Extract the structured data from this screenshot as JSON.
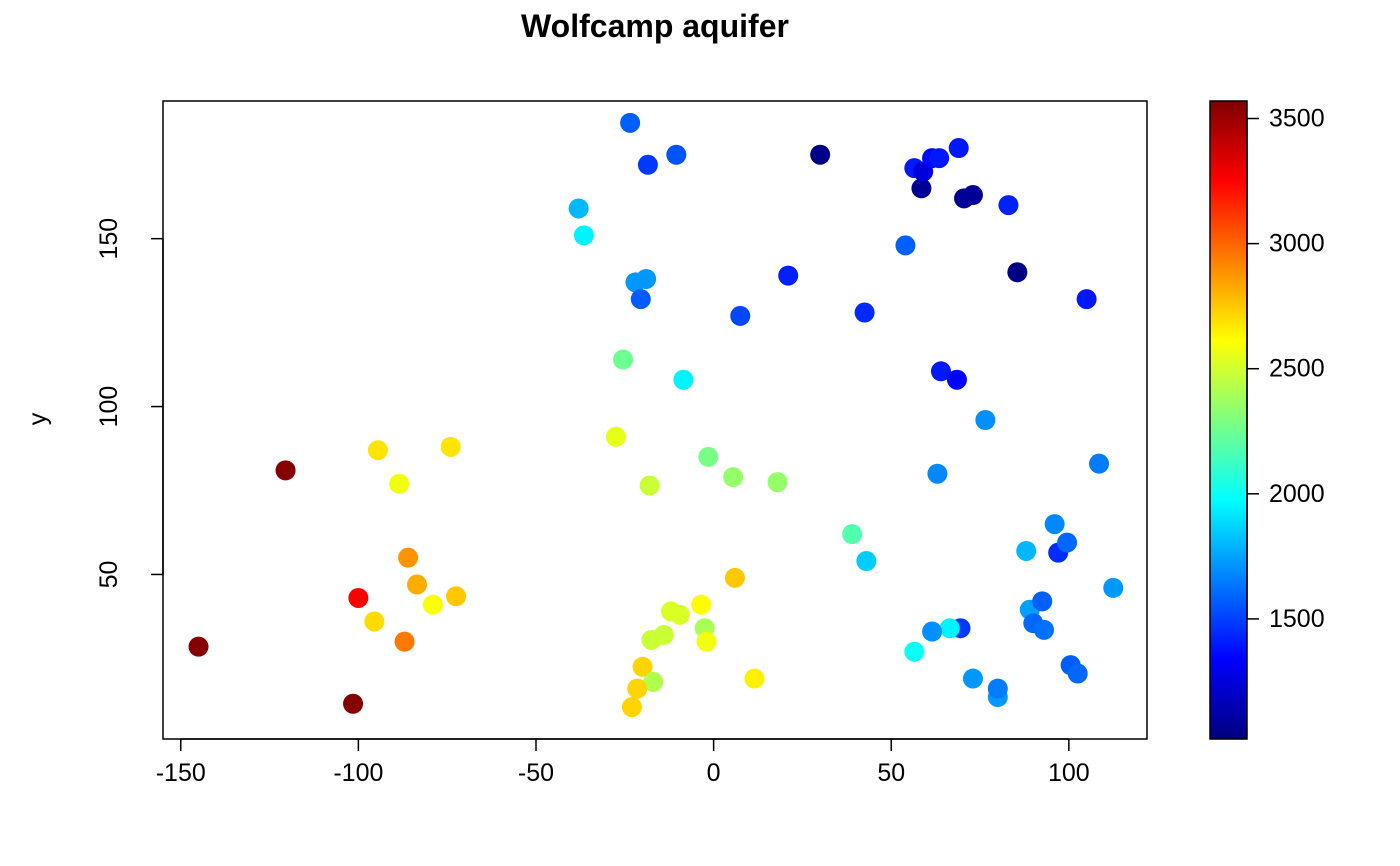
{
  "chart_data": {
    "type": "scatter",
    "title": "Wolfcamp aquifer",
    "xlabel": "",
    "ylabel": "y",
    "xlim": [
      -155,
      122
    ],
    "ylim": [
      1,
      191
    ],
    "xticks": [
      -150,
      -100,
      -50,
      0,
      50,
      100
    ],
    "xtick_labels": [
      "-150",
      "-100",
      "-50",
      "0",
      "50",
      "100"
    ],
    "yticks": [
      50,
      100,
      150
    ],
    "ytick_labels": [
      "50",
      "100",
      "150"
    ],
    "grid": false,
    "legend": "right",
    "colorbar": {
      "min": 1020,
      "max": 3570,
      "ticks": [
        1500,
        2000,
        2500,
        3000,
        3500
      ],
      "tick_labels": [
        "1500",
        "2000",
        "2500",
        "3000",
        "3500"
      ],
      "colormap": [
        "#00007F",
        "#0000FF",
        "#007FFF",
        "#00FFFF",
        "#7FFF7F",
        "#FFFF00",
        "#FF7F00",
        "#FF0000",
        "#7F0000"
      ]
    },
    "points": [
      {
        "x": -23.5,
        "y": 184.5,
        "value": 1580
      },
      {
        "x": -10.5,
        "y": 175,
        "value": 1550
      },
      {
        "x": -18.5,
        "y": 172,
        "value": 1480
      },
      {
        "x": -38,
        "y": 159,
        "value": 1800
      },
      {
        "x": -36.5,
        "y": 151,
        "value": 1950
      },
      {
        "x": -22,
        "y": 137,
        "value": 1720
      },
      {
        "x": -19,
        "y": 138,
        "value": 1720
      },
      {
        "x": -20.5,
        "y": 132,
        "value": 1570
      },
      {
        "x": 7.5,
        "y": 127,
        "value": 1520
      },
      {
        "x": 21,
        "y": 139,
        "value": 1420
      },
      {
        "x": 30,
        "y": 175,
        "value": 1040
      },
      {
        "x": 42.5,
        "y": 128,
        "value": 1440
      },
      {
        "x": 54,
        "y": 148,
        "value": 1580
      },
      {
        "x": 56.5,
        "y": 171,
        "value": 1400
      },
      {
        "x": 58.5,
        "y": 165,
        "value": 1080
      },
      {
        "x": 59,
        "y": 170,
        "value": 1250
      },
      {
        "x": 61.5,
        "y": 174,
        "value": 1360
      },
      {
        "x": 63.5,
        "y": 174,
        "value": 1400
      },
      {
        "x": 69,
        "y": 177,
        "value": 1400
      },
      {
        "x": 70.5,
        "y": 162,
        "value": 1080
      },
      {
        "x": 73,
        "y": 163,
        "value": 1080
      },
      {
        "x": 83,
        "y": 160,
        "value": 1420
      },
      {
        "x": 85.5,
        "y": 140,
        "value": 1040
      },
      {
        "x": 105,
        "y": 132,
        "value": 1400
      },
      {
        "x": -25.5,
        "y": 114,
        "value": 2250
      },
      {
        "x": -8.5,
        "y": 108,
        "value": 1950
      },
      {
        "x": 64,
        "y": 110.5,
        "value": 1400
      },
      {
        "x": 68.5,
        "y": 108,
        "value": 1350
      },
      {
        "x": 76.5,
        "y": 96,
        "value": 1700
      },
      {
        "x": 108.5,
        "y": 83,
        "value": 1650
      },
      {
        "x": -27.5,
        "y": 91,
        "value": 2550
      },
      {
        "x": -1.5,
        "y": 85,
        "value": 2280
      },
      {
        "x": 5.5,
        "y": 79,
        "value": 2350
      },
      {
        "x": 18,
        "y": 77.5,
        "value": 2350
      },
      {
        "x": -18,
        "y": 76.5,
        "value": 2480
      },
      {
        "x": 63,
        "y": 80,
        "value": 1680
      },
      {
        "x": -120.5,
        "y": 81,
        "value": 3550
      },
      {
        "x": -94.5,
        "y": 87,
        "value": 2680
      },
      {
        "x": -74,
        "y": 88,
        "value": 2680
      },
      {
        "x": -88.5,
        "y": 77,
        "value": 2580
      },
      {
        "x": 39,
        "y": 62,
        "value": 2180
      },
      {
        "x": 43,
        "y": 54,
        "value": 1850
      },
      {
        "x": 88,
        "y": 57,
        "value": 1800
      },
      {
        "x": 96,
        "y": 65,
        "value": 1680
      },
      {
        "x": 97,
        "y": 56.5,
        "value": 1450
      },
      {
        "x": 99.5,
        "y": 59.5,
        "value": 1600
      },
      {
        "x": 112.5,
        "y": 46,
        "value": 1720
      },
      {
        "x": -86,
        "y": 55,
        "value": 2880
      },
      {
        "x": -83.5,
        "y": 47,
        "value": 2820
      },
      {
        "x": -79,
        "y": 41,
        "value": 2600
      },
      {
        "x": -72.5,
        "y": 43.5,
        "value": 2750
      },
      {
        "x": -100,
        "y": 43,
        "value": 3250
      },
      {
        "x": -95.5,
        "y": 36,
        "value": 2700
      },
      {
        "x": -87,
        "y": 30,
        "value": 2950
      },
      {
        "x": 6,
        "y": 49,
        "value": 2750
      },
      {
        "x": -3.5,
        "y": 41,
        "value": 2620
      },
      {
        "x": -12,
        "y": 39,
        "value": 2520
      },
      {
        "x": -9.5,
        "y": 38,
        "value": 2520
      },
      {
        "x": -2.5,
        "y": 34,
        "value": 2400
      },
      {
        "x": -14,
        "y": 32,
        "value": 2480
      },
      {
        "x": -17.5,
        "y": 30.5,
        "value": 2480
      },
      {
        "x": -2,
        "y": 30,
        "value": 2580
      },
      {
        "x": 89,
        "y": 39.5,
        "value": 1740
      },
      {
        "x": 92.5,
        "y": 42,
        "value": 1580
      },
      {
        "x": 90,
        "y": 35.5,
        "value": 1600
      },
      {
        "x": 93,
        "y": 33.5,
        "value": 1620
      },
      {
        "x": 69.5,
        "y": 34,
        "value": 1480
      },
      {
        "x": 66.5,
        "y": 34,
        "value": 1950
      },
      {
        "x": 61.5,
        "y": 33,
        "value": 1700
      },
      {
        "x": 56.5,
        "y": 27,
        "value": 2000
      },
      {
        "x": -145,
        "y": 28.5,
        "value": 3550
      },
      {
        "x": -101.5,
        "y": 11.5,
        "value": 3550
      },
      {
        "x": -20,
        "y": 22.5,
        "value": 2720
      },
      {
        "x": -17,
        "y": 18,
        "value": 2420
      },
      {
        "x": -21.5,
        "y": 16,
        "value": 2720
      },
      {
        "x": -23,
        "y": 10.5,
        "value": 2720
      },
      {
        "x": 11.5,
        "y": 19,
        "value": 2650
      },
      {
        "x": 73,
        "y": 19,
        "value": 1720
      },
      {
        "x": 80,
        "y": 13.5,
        "value": 1720
      },
      {
        "x": 80,
        "y": 16,
        "value": 1650
      },
      {
        "x": 100.5,
        "y": 23,
        "value": 1570
      },
      {
        "x": 102.5,
        "y": 20.5,
        "value": 1600
      }
    ]
  }
}
